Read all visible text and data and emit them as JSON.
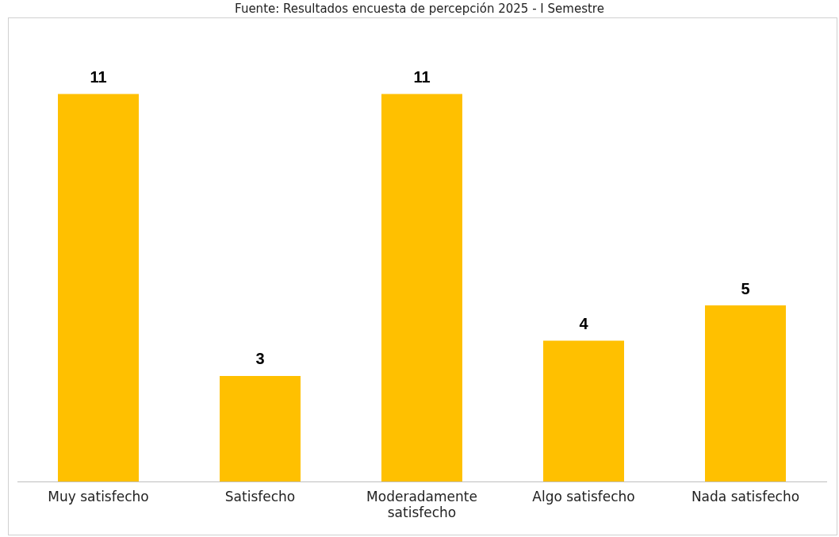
{
  "chart_data": {
    "type": "bar",
    "annotations": [
      "Fuente: Resultados encuesta de percepción 2025 - I Semestre"
    ],
    "categories": [
      "Muy satisfecho",
      "Satisfecho",
      "Moderadamente satisfecho",
      "Algo satisfecho",
      "Nada satisfecho"
    ],
    "values": [
      11,
      3,
      11,
      4,
      5
    ],
    "color": "#ffc000",
    "data_labels": true,
    "grid": false,
    "legend": false
  }
}
